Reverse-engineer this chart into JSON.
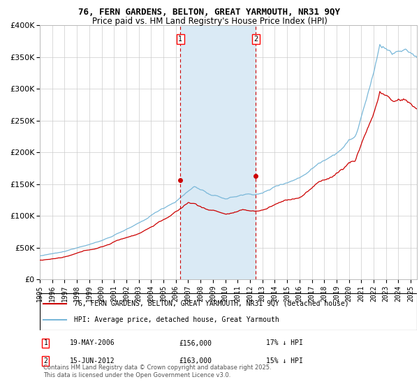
{
  "title": "76, FERN GARDENS, BELTON, GREAT YARMOUTH, NR31 9QY",
  "subtitle": "Price paid vs. HM Land Registry's House Price Index (HPI)",
  "legend_line1": "76, FERN GARDENS, BELTON, GREAT YARMOUTH, NR31 9QY (detached house)",
  "legend_line2": "HPI: Average price, detached house, Great Yarmouth",
  "annotation1_date": "19-MAY-2006",
  "annotation1_price": "£156,000",
  "annotation1_hpi": "17% ↓ HPI",
  "annotation2_date": "15-JUN-2012",
  "annotation2_price": "£163,000",
  "annotation2_hpi": "15% ↓ HPI",
  "vline1_x": 2006.38,
  "vline2_x": 2012.46,
  "shade_x1": 2006.38,
  "shade_x2": 2012.46,
  "dot1_x": 2006.38,
  "dot1_y": 156000,
  "dot2_x": 2012.46,
  "dot2_y": 163000,
  "hpi_color": "#7ab8d9",
  "price_color": "#cc0000",
  "shade_color": "#daeaf5",
  "background_color": "#ffffff",
  "grid_color": "#cccccc",
  "ylim": [
    0,
    400000
  ],
  "xlim": [
    1995.0,
    2025.5
  ],
  "footer": "Contains HM Land Registry data © Crown copyright and database right 2025.\nThis data is licensed under the Open Government Licence v3.0."
}
